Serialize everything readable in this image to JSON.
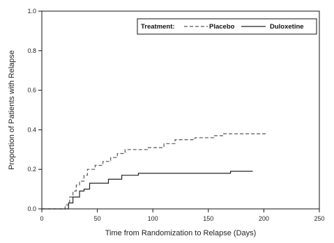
{
  "chart_data": {
    "type": "line",
    "xlabel": "Time from Randomization to Relapse (Days)",
    "ylabel": "Proportion of Patients with Relapse",
    "xlim": [
      0,
      250
    ],
    "ylim": [
      0,
      1.0
    ],
    "x_ticks": [
      "0",
      "50",
      "100",
      "150",
      "200",
      "250"
    ],
    "y_ticks": [
      "0.0",
      "0.2",
      "0.4",
      "0.6",
      "0.8",
      "1.0"
    ],
    "legend": {
      "title": "Treatment:",
      "placement": "top-right"
    },
    "grid": false,
    "series": [
      {
        "name": "Placebo",
        "style": "dashed",
        "color": "#555555",
        "points": [
          [
            0,
            0
          ],
          [
            21,
            0
          ],
          [
            21,
            0.02
          ],
          [
            25,
            0.02
          ],
          [
            25,
            0.06
          ],
          [
            28,
            0.06
          ],
          [
            28,
            0.09
          ],
          [
            31,
            0.09
          ],
          [
            31,
            0.12
          ],
          [
            34,
            0.12
          ],
          [
            34,
            0.14
          ],
          [
            38,
            0.14
          ],
          [
            38,
            0.17
          ],
          [
            41,
            0.17
          ],
          [
            41,
            0.2
          ],
          [
            48,
            0.2
          ],
          [
            48,
            0.22
          ],
          [
            55,
            0.22
          ],
          [
            55,
            0.24
          ],
          [
            62,
            0.24
          ],
          [
            62,
            0.26
          ],
          [
            68,
            0.26
          ],
          [
            68,
            0.28
          ],
          [
            75,
            0.28
          ],
          [
            75,
            0.3
          ],
          [
            95,
            0.3
          ],
          [
            95,
            0.31
          ],
          [
            110,
            0.31
          ],
          [
            110,
            0.33
          ],
          [
            120,
            0.33
          ],
          [
            120,
            0.35
          ],
          [
            138,
            0.35
          ],
          [
            138,
            0.36
          ],
          [
            155,
            0.36
          ],
          [
            155,
            0.37
          ],
          [
            163,
            0.37
          ],
          [
            163,
            0.38
          ],
          [
            203,
            0.38
          ]
        ]
      },
      {
        "name": "Duloxetine",
        "style": "solid",
        "color": "#222222",
        "points": [
          [
            0,
            0
          ],
          [
            24,
            0
          ],
          [
            24,
            0.03
          ],
          [
            28,
            0.03
          ],
          [
            28,
            0.06
          ],
          [
            34,
            0.06
          ],
          [
            34,
            0.09
          ],
          [
            38,
            0.09
          ],
          [
            38,
            0.1
          ],
          [
            43,
            0.1
          ],
          [
            43,
            0.13
          ],
          [
            60,
            0.13
          ],
          [
            60,
            0.15
          ],
          [
            72,
            0.15
          ],
          [
            72,
            0.17
          ],
          [
            87,
            0.17
          ],
          [
            87,
            0.18
          ],
          [
            170,
            0.18
          ],
          [
            170,
            0.19
          ],
          [
            190,
            0.19
          ]
        ]
      }
    ]
  }
}
